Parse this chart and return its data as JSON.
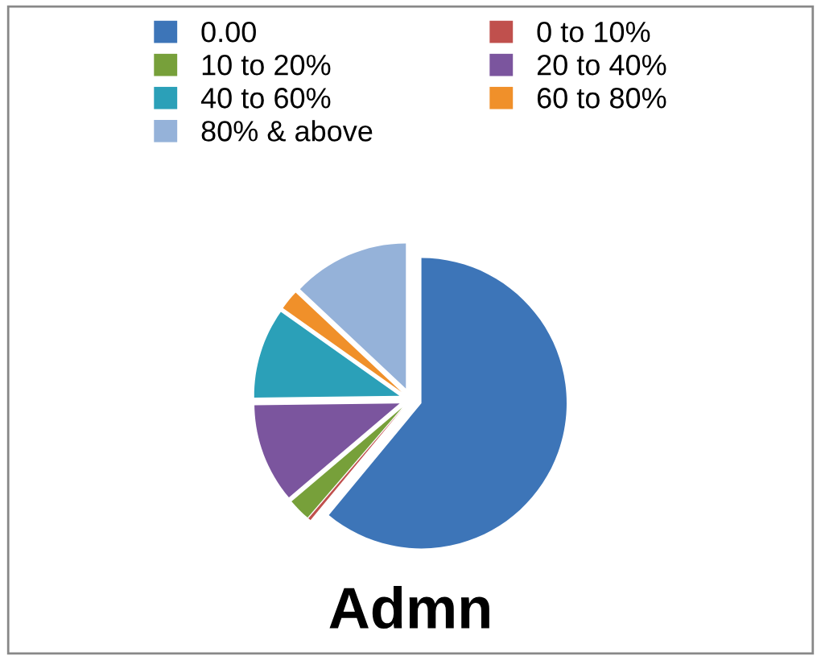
{
  "chart_data": {
    "type": "pie",
    "title": "Admn",
    "categories": [
      "0.00",
      "0 to 10%",
      "10 to 20%",
      "20 to 40%",
      "40 to 60%",
      "60 to 80%",
      "80% & above"
    ],
    "values": [
      61,
      0.3,
      2.5,
      11,
      10,
      2.2,
      13
    ],
    "colors": [
      "#3d75b8",
      "#c0504d",
      "#77a03a",
      "#7b559e",
      "#2ba0b8",
      "#f0902a",
      "#95b2d9"
    ],
    "legend": "top"
  }
}
